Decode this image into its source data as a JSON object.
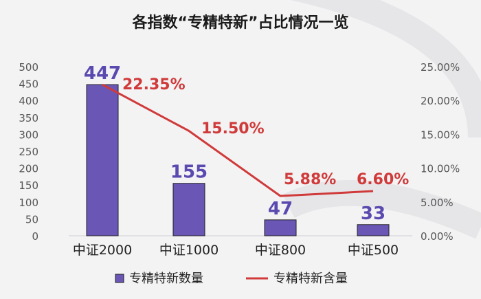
{
  "chart_data": {
    "type": "bar+line",
    "title": "各指数“专精特新”占比情况一览",
    "categories": [
      "中证2000",
      "中证1000",
      "中证800",
      "中证500"
    ],
    "series": [
      {
        "name": "专精特新数量",
        "kind": "bar",
        "axis": "left",
        "values": [
          447,
          155,
          47,
          33
        ],
        "labels": [
          "447",
          "155",
          "47",
          "33"
        ],
        "color": "#6a57b5",
        "label_color": "#5a4ab0"
      },
      {
        "name": "专精特新含量",
        "kind": "line",
        "axis": "right",
        "values": [
          22.35,
          15.5,
          5.88,
          6.6
        ],
        "labels": [
          "22.35%",
          "15.50%",
          "5.88%",
          "6.60%"
        ],
        "color": "#d03a3a"
      }
    ],
    "left_axis": {
      "min": 0,
      "max": 500,
      "ticks": [
        "0",
        "50",
        "100",
        "150",
        "200",
        "250",
        "300",
        "350",
        "400",
        "450",
        "500"
      ]
    },
    "right_axis": {
      "min": 0,
      "max": 25,
      "ticks": [
        "0.00%",
        "5.00%",
        "10.00%",
        "15.00%",
        "20.00%",
        "25.00%"
      ]
    },
    "grid": false,
    "legend_position": "bottom"
  }
}
